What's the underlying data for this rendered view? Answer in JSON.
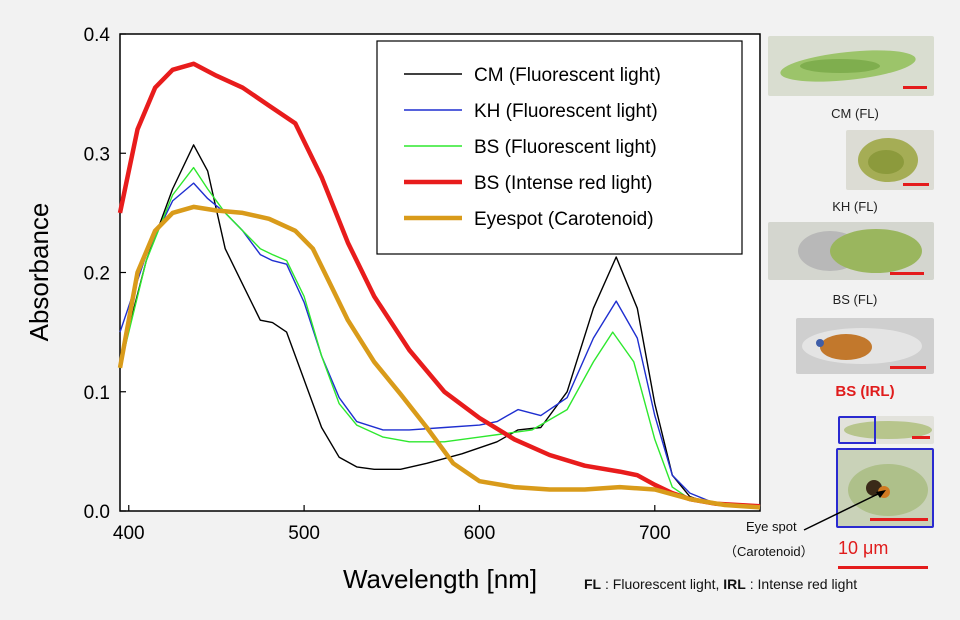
{
  "chart_data": {
    "type": "line",
    "xlabel": "Wavelength [nm]",
    "ylabel": "Absorbance",
    "xlim": [
      395,
      760
    ],
    "ylim": [
      0.0,
      0.4
    ],
    "x_ticks": [
      "400",
      "500",
      "600",
      "700"
    ],
    "y_ticks": [
      "0.0",
      "0.1",
      "0.2",
      "0.3",
      "0.4"
    ],
    "grid": false,
    "legend_position": "top-right",
    "series": [
      {
        "name": "CM (Fluorescent light)",
        "color": "#000000",
        "x": [
          395,
          410,
          425,
          437,
          445,
          455,
          465,
          475,
          482,
          490,
          500,
          510,
          520,
          530,
          540,
          555,
          570,
          590,
          610,
          622,
          635,
          650,
          665,
          678,
          690,
          700,
          710,
          720,
          735,
          760
        ],
        "y": [
          0.125,
          0.21,
          0.27,
          0.307,
          0.285,
          0.22,
          0.19,
          0.16,
          0.158,
          0.15,
          0.11,
          0.07,
          0.045,
          0.037,
          0.035,
          0.035,
          0.04,
          0.048,
          0.058,
          0.068,
          0.07,
          0.1,
          0.17,
          0.213,
          0.17,
          0.09,
          0.03,
          0.012,
          0.005,
          0.003
        ]
      },
      {
        "name": "KH (Fluorescent light)",
        "color": "#1f2fd0",
        "x": [
          395,
          410,
          425,
          437,
          445,
          455,
          465,
          475,
          482,
          490,
          500,
          510,
          520,
          530,
          545,
          560,
          580,
          600,
          610,
          622,
          635,
          650,
          665,
          678,
          690,
          700,
          710,
          720,
          735,
          760
        ],
        "y": [
          0.15,
          0.215,
          0.26,
          0.275,
          0.262,
          0.25,
          0.235,
          0.215,
          0.21,
          0.207,
          0.175,
          0.13,
          0.095,
          0.075,
          0.068,
          0.068,
          0.07,
          0.072,
          0.075,
          0.085,
          0.08,
          0.095,
          0.145,
          0.176,
          0.145,
          0.08,
          0.03,
          0.015,
          0.006,
          0.004
        ]
      },
      {
        "name": "BS (Fluorescent light)",
        "color": "#2ee82e",
        "x": [
          395,
          410,
          425,
          437,
          445,
          455,
          465,
          475,
          482,
          490,
          500,
          510,
          520,
          530,
          545,
          560,
          580,
          600,
          615,
          630,
          650,
          665,
          676,
          688,
          700,
          710,
          720,
          735,
          760
        ],
        "y": [
          0.12,
          0.21,
          0.265,
          0.288,
          0.27,
          0.25,
          0.235,
          0.22,
          0.215,
          0.21,
          0.18,
          0.13,
          0.09,
          0.072,
          0.062,
          0.058,
          0.058,
          0.062,
          0.065,
          0.068,
          0.085,
          0.125,
          0.15,
          0.125,
          0.06,
          0.02,
          0.01,
          0.005,
          0.003
        ]
      },
      {
        "name": "BS (Intense red  light)",
        "color": "#e81c1c",
        "x": [
          395,
          405,
          415,
          425,
          437,
          450,
          465,
          480,
          495,
          510,
          525,
          540,
          560,
          580,
          600,
          620,
          640,
          660,
          680,
          690,
          700,
          710,
          720,
          735,
          760
        ],
        "y": [
          0.25,
          0.32,
          0.355,
          0.37,
          0.375,
          0.365,
          0.355,
          0.34,
          0.325,
          0.28,
          0.225,
          0.18,
          0.135,
          0.1,
          0.078,
          0.06,
          0.047,
          0.038,
          0.033,
          0.03,
          0.022,
          0.015,
          0.01,
          0.006,
          0.004
        ]
      },
      {
        "name": "Eyespot (Carotenoid)",
        "color": "#d99b1a",
        "x": [
          395,
          405,
          415,
          425,
          437,
          450,
          465,
          480,
          495,
          505,
          515,
          525,
          540,
          555,
          570,
          585,
          600,
          620,
          640,
          660,
          680,
          700,
          720,
          740,
          760
        ],
        "y": [
          0.12,
          0.2,
          0.235,
          0.25,
          0.255,
          0.252,
          0.25,
          0.245,
          0.235,
          0.22,
          0.19,
          0.16,
          0.125,
          0.098,
          0.07,
          0.04,
          0.025,
          0.02,
          0.018,
          0.018,
          0.02,
          0.018,
          0.01,
          0.005,
          0.003
        ]
      }
    ]
  },
  "samples": [
    {
      "caption": "CM (FL)",
      "color": "#8fbf5e",
      "bg": "#d8dccd"
    },
    {
      "caption": "KH (FL)",
      "color": "#9aa64a",
      "bg": "#dcdcd4"
    },
    {
      "caption": "BS (FL)",
      "color": "#94b05a",
      "bg": "#d4d6cf"
    },
    {
      "caption": "BS (IRL)",
      "color": "#c57a2a",
      "bg": "#cfcfcf"
    }
  ],
  "eyespot_label": "Eye spot",
  "eyespot_sublabel": "（Carotenoid）",
  "scale_label": "10 μm",
  "footnote": {
    "fl_abbr": "FL",
    "fl_text": " : Fluorescent light, ",
    "irl_abbr": "IRL",
    "irl_text": " : Intense red light"
  }
}
